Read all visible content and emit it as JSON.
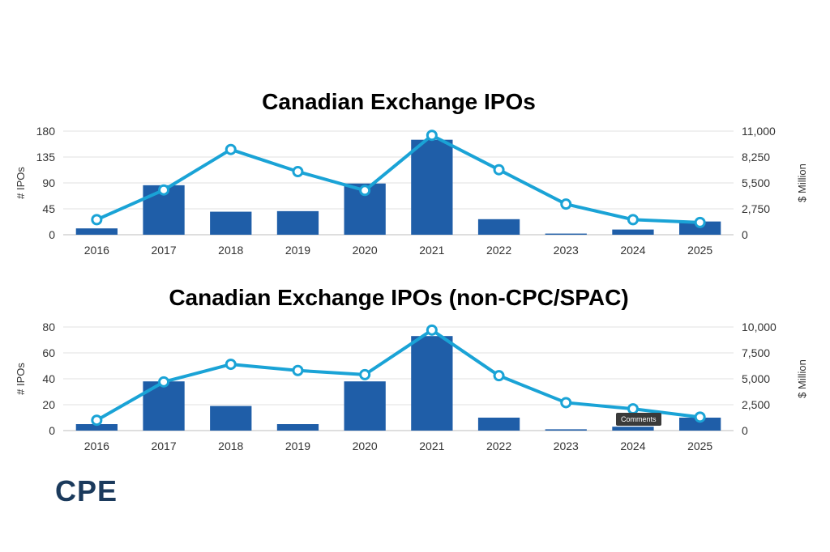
{
  "colors": {
    "bar": "#1f5ea8",
    "line": "#1aa3d6",
    "axis": "#c8c8c8",
    "text": "#333333",
    "logo": "#1b3a5c"
  },
  "logo": {
    "text": "CPE"
  },
  "tooltip": {
    "text": "Comments"
  },
  "chart_data": [
    {
      "type": "bar",
      "title": "Canadian Exchange IPOs",
      "ylabel": "# IPOs",
      "y2label": "$ Million",
      "categories": [
        "2016",
        "2017",
        "2018",
        "2019",
        "2020",
        "2021",
        "2022",
        "2023",
        "2024",
        "2025"
      ],
      "ylim": [
        0,
        180
      ],
      "yticks": [
        "180",
        "135",
        "90",
        "45",
        "0"
      ],
      "y2lim": [
        0,
        11000
      ],
      "y2ticks": [
        "11,000",
        "8,250",
        "5,500",
        "2,750",
        "0"
      ],
      "series": [
        {
          "type": "bar",
          "axis": "left",
          "values": [
            11,
            86,
            40,
            41,
            89,
            165,
            27,
            2,
            9,
            23
          ]
        },
        {
          "type": "line",
          "axis": "right",
          "values": [
            1600,
            4750,
            9050,
            6700,
            4700,
            10550,
            6900,
            3250,
            1600,
            1300
          ]
        }
      ],
      "grid": true
    },
    {
      "type": "bar",
      "title": "Canadian Exchange IPOs (non-CPC/SPAC)",
      "ylabel": "# IPOs",
      "y2label": "$ Million",
      "categories": [
        "2016",
        "2017",
        "2018",
        "2019",
        "2020",
        "2021",
        "2022",
        "2023",
        "2024",
        "2025"
      ],
      "ylim": [
        0,
        80
      ],
      "yticks": [
        "80",
        "60",
        "40",
        "20",
        "0"
      ],
      "y2lim": [
        0,
        10000
      ],
      "y2ticks": [
        "10,000",
        "7,500",
        "5,000",
        "2,500",
        "0"
      ],
      "series": [
        {
          "type": "bar",
          "axis": "left",
          "values": [
            5,
            38,
            19,
            5,
            38,
            73,
            10,
            1,
            3,
            10
          ]
        },
        {
          "type": "line",
          "axis": "right",
          "values": [
            1000,
            4700,
            6400,
            5800,
            5400,
            9700,
            5300,
            2700,
            2100,
            1300
          ]
        }
      ],
      "grid": true
    }
  ]
}
